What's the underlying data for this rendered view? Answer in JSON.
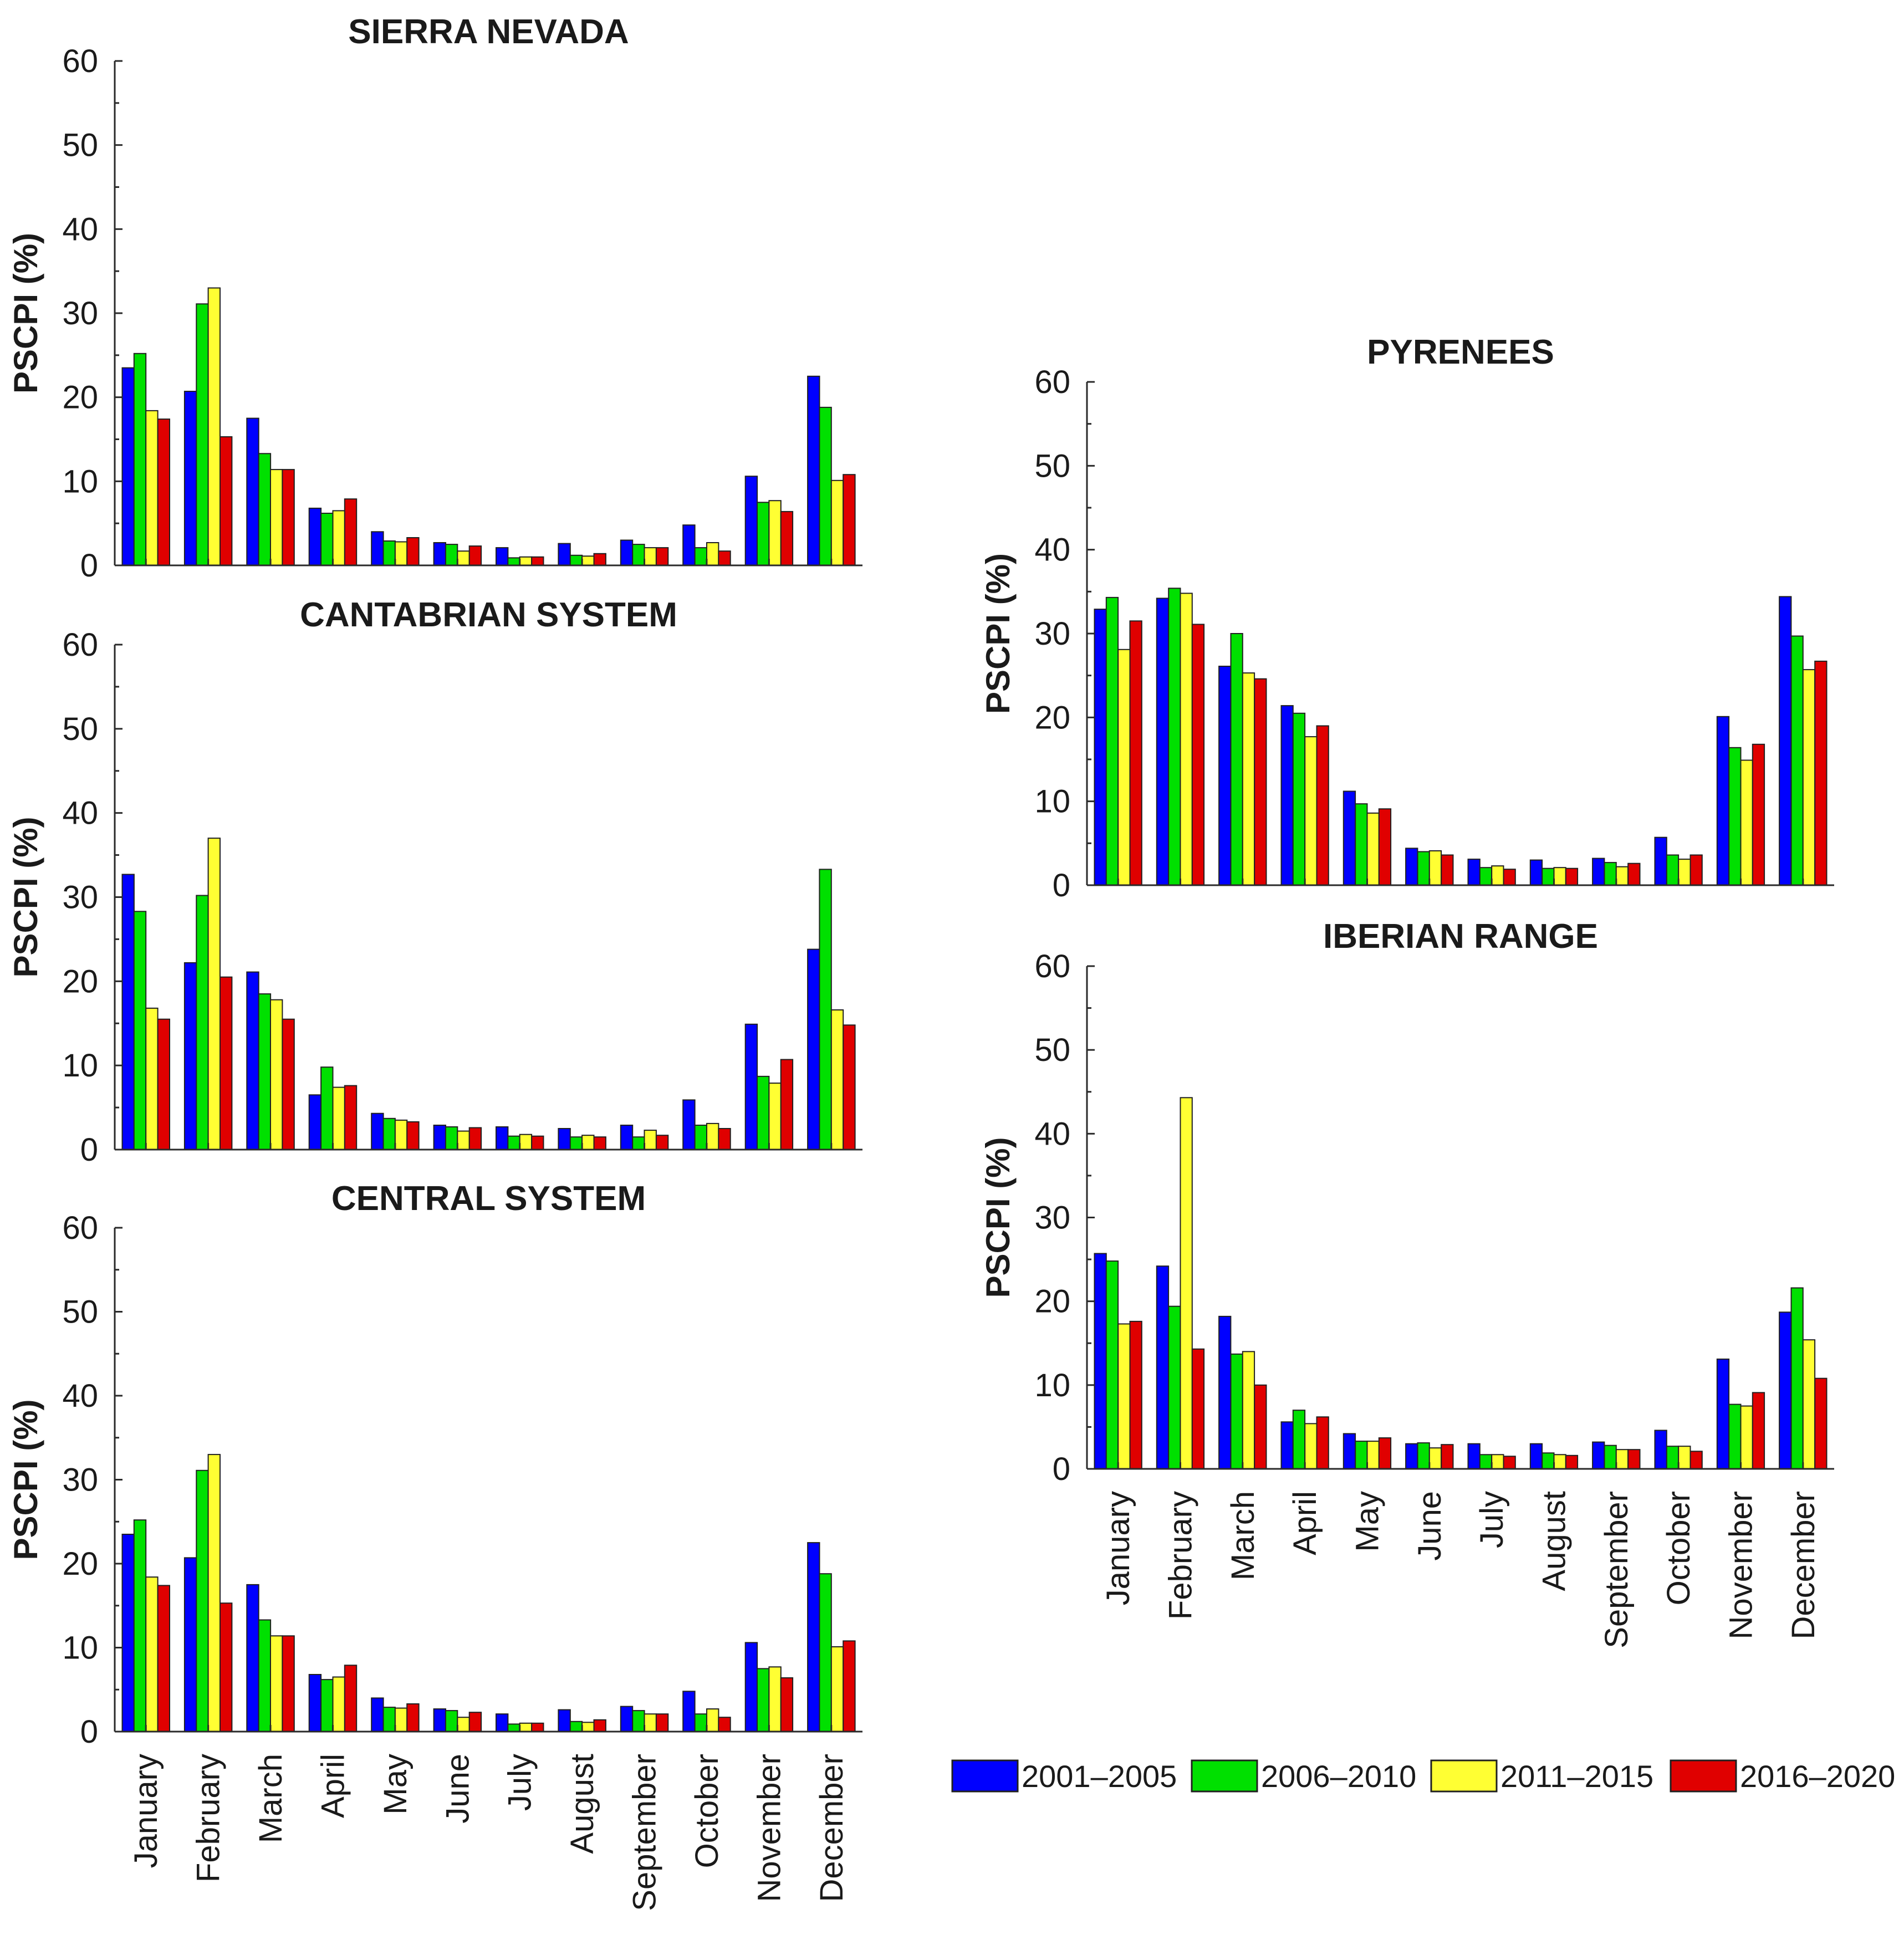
{
  "colors": {
    "2001-2005": "#0000ff",
    "2006-2010": "#00e000",
    "2011-2015": "#ffff33",
    "2016-2020": "#e00000"
  },
  "legend": [
    "2001–2005",
    "2006–2010",
    "2011–2015",
    "2016–2020"
  ],
  "chart_data": [
    {
      "type": "bar",
      "title": "SIERRA NEVADA",
      "ylabel": "PSCPI (%)",
      "ylim": [
        0,
        60
      ],
      "yticks": [
        0,
        10,
        20,
        30,
        40,
        50,
        60
      ],
      "categories": [
        "January",
        "February",
        "March",
        "April",
        "May",
        "June",
        "July",
        "August",
        "September",
        "October",
        "November",
        "December"
      ],
      "show_categories": false,
      "series": [
        {
          "name": "2001–2005",
          "values": [
            23.5,
            20.7,
            17.5,
            6.8,
            4.0,
            2.7,
            2.1,
            2.6,
            3.0,
            4.8,
            10.6,
            22.5
          ]
        },
        {
          "name": "2006–2010",
          "values": [
            25.2,
            31.1,
            13.3,
            6.2,
            2.9,
            2.5,
            0.9,
            1.2,
            2.5,
            2.1,
            7.5,
            18.8
          ]
        },
        {
          "name": "2011–2015",
          "values": [
            18.4,
            33.0,
            11.4,
            6.5,
            2.8,
            1.7,
            1.0,
            1.1,
            2.1,
            2.7,
            7.7,
            10.1
          ]
        },
        {
          "name": "2016–2020",
          "values": [
            17.4,
            15.3,
            11.4,
            7.9,
            3.3,
            2.3,
            1.0,
            1.4,
            2.1,
            1.7,
            6.4,
            10.8
          ]
        }
      ]
    },
    {
      "type": "bar",
      "title": "CANTABRIAN SYSTEM",
      "ylabel": "PSCPI (%)",
      "ylim": [
        0,
        60
      ],
      "yticks": [
        0,
        10,
        20,
        30,
        40,
        50,
        60
      ],
      "categories": [
        "January",
        "February",
        "March",
        "April",
        "May",
        "June",
        "July",
        "August",
        "September",
        "October",
        "November",
        "December"
      ],
      "show_categories": false,
      "series": [
        {
          "name": "2001–2005",
          "values": [
            32.7,
            22.2,
            21.1,
            6.5,
            4.3,
            2.9,
            2.7,
            2.5,
            2.9,
            5.9,
            14.9,
            23.8
          ]
        },
        {
          "name": "2006–2010",
          "values": [
            28.3,
            30.2,
            18.5,
            9.8,
            3.7,
            2.7,
            1.6,
            1.5,
            1.5,
            2.9,
            8.7,
            33.3
          ]
        },
        {
          "name": "2011–2015",
          "values": [
            16.8,
            37.0,
            17.8,
            7.4,
            3.5,
            2.2,
            1.8,
            1.7,
            2.3,
            3.1,
            7.9,
            16.6
          ]
        },
        {
          "name": "2016–2020",
          "values": [
            15.5,
            20.5,
            15.5,
            7.6,
            3.3,
            2.6,
            1.6,
            1.5,
            1.7,
            2.5,
            10.7,
            14.8
          ]
        }
      ]
    },
    {
      "type": "bar",
      "title": "CENTRAL SYSTEM",
      "ylabel": "PSCPI (%)",
      "ylim": [
        0,
        60
      ],
      "yticks": [
        0,
        10,
        20,
        30,
        40,
        50,
        60
      ],
      "categories": [
        "January",
        "February",
        "March",
        "April",
        "May",
        "June",
        "July",
        "August",
        "September",
        "October",
        "November",
        "December"
      ],
      "show_categories": true,
      "series": [
        {
          "name": "2001–2005",
          "values": [
            23.5,
            20.7,
            17.5,
            6.8,
            4.0,
            2.7,
            2.1,
            2.6,
            3.0,
            4.8,
            10.6,
            22.5
          ]
        },
        {
          "name": "2006–2010",
          "values": [
            25.2,
            31.1,
            13.3,
            6.2,
            2.9,
            2.5,
            0.9,
            1.2,
            2.5,
            2.1,
            7.5,
            18.8
          ]
        },
        {
          "name": "2011–2015",
          "values": [
            18.4,
            33.0,
            11.4,
            6.5,
            2.8,
            1.7,
            1.0,
            1.1,
            2.1,
            2.7,
            7.7,
            10.1
          ]
        },
        {
          "name": "2016–2020",
          "values": [
            17.4,
            15.3,
            11.4,
            7.9,
            3.3,
            2.3,
            1.0,
            1.4,
            2.1,
            1.7,
            6.4,
            10.8
          ]
        }
      ]
    },
    {
      "type": "bar",
      "title": "PYRENEES",
      "ylabel": "PSCPI (%)",
      "ylim": [
        0,
        60
      ],
      "yticks": [
        0,
        10,
        20,
        30,
        40,
        50,
        60
      ],
      "categories": [
        "January",
        "February",
        "March",
        "April",
        "May",
        "June",
        "July",
        "August",
        "September",
        "October",
        "November",
        "December"
      ],
      "show_categories": false,
      "series": [
        {
          "name": "2001–2005",
          "values": [
            32.9,
            34.2,
            26.1,
            21.4,
            11.2,
            4.4,
            3.1,
            3.0,
            3.2,
            5.7,
            20.1,
            34.4
          ]
        },
        {
          "name": "2006–2010",
          "values": [
            34.3,
            35.4,
            30.0,
            20.5,
            9.7,
            4.0,
            2.1,
            2.0,
            2.7,
            3.6,
            16.4,
            29.7
          ]
        },
        {
          "name": "2011–2015",
          "values": [
            28.1,
            34.8,
            25.3,
            17.7,
            8.6,
            4.1,
            2.3,
            2.1,
            2.2,
            3.1,
            14.9,
            25.7
          ]
        },
        {
          "name": "2016–2020",
          "values": [
            31.5,
            31.1,
            24.6,
            19.0,
            9.1,
            3.6,
            1.9,
            2.0,
            2.6,
            3.6,
            16.8,
            26.7
          ]
        }
      ]
    },
    {
      "type": "bar",
      "title": "IBERIAN RANGE",
      "ylabel": "PSCPI (%)",
      "ylim": [
        0,
        60
      ],
      "yticks": [
        0,
        10,
        20,
        30,
        40,
        50,
        60
      ],
      "categories": [
        "January",
        "February",
        "March",
        "April",
        "May",
        "June",
        "July",
        "August",
        "September",
        "October",
        "November",
        "December"
      ],
      "show_categories": true,
      "series": [
        {
          "name": "2001–2005",
          "values": [
            25.7,
            24.2,
            18.2,
            5.6,
            4.2,
            3.0,
            3.0,
            3.0,
            3.2,
            4.6,
            13.1,
            18.7
          ]
        },
        {
          "name": "2006–2010",
          "values": [
            24.8,
            19.4,
            13.7,
            7.0,
            3.3,
            3.1,
            1.7,
            1.9,
            2.8,
            2.7,
            7.7,
            21.6
          ]
        },
        {
          "name": "2011–2015",
          "values": [
            17.3,
            44.3,
            14.0,
            5.4,
            3.3,
            2.5,
            1.7,
            1.7,
            2.3,
            2.7,
            7.5,
            15.4
          ]
        },
        {
          "name": "2016–2020",
          "values": [
            17.6,
            14.3,
            10.0,
            6.2,
            3.7,
            2.9,
            1.5,
            1.6,
            2.3,
            2.1,
            9.1,
            10.8
          ]
        }
      ]
    }
  ]
}
